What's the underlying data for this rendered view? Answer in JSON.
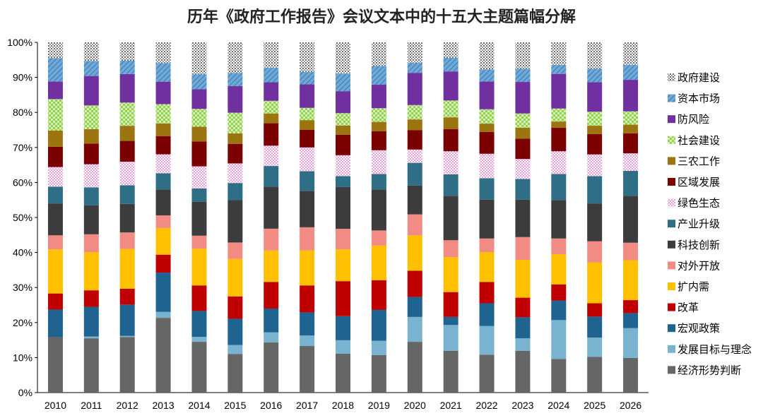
{
  "chart_data": {
    "type": "stacked-bar-100",
    "title": "历年《政府工作报告》会议文本中的十五大主题篇幅分解",
    "xlabel": "",
    "ylabel": "",
    "ylim": [
      0,
      100
    ],
    "yticks": [
      "0%",
      "10%",
      "20%",
      "30%",
      "40%",
      "50%",
      "60%",
      "70%",
      "80%",
      "90%",
      "100%"
    ],
    "categories": [
      "2010",
      "2011",
      "2012",
      "2013",
      "2014",
      "2015",
      "2016",
      "2017",
      "2018",
      "2019",
      "2020",
      "2021",
      "2022",
      "2023",
      "2024",
      "2025",
      "2026"
    ],
    "series": [
      {
        "name": "经济形势判断",
        "color": "#666666",
        "pattern": "solid",
        "values": [
          15.8,
          15.5,
          15.8,
          21.3,
          14.5,
          11.0,
          14.3,
          13.3,
          11.0,
          10.7,
          14.5,
          11.9,
          10.8,
          11.9,
          9.6,
          10.2,
          9.9
        ]
      },
      {
        "name": "发展目标与理念",
        "color": "#7ab3cf",
        "pattern": "solid",
        "values": [
          0.0,
          0.5,
          0.3,
          1.7,
          1.4,
          2.6,
          2.9,
          3.0,
          3.8,
          4.1,
          7.1,
          7.4,
          8.2,
          3.6,
          11.1,
          5.5,
          8.5
        ]
      },
      {
        "name": "宏观政策",
        "color": "#1f6391",
        "pattern": "solid",
        "values": [
          7.9,
          8.5,
          8.9,
          11.2,
          7.4,
          7.5,
          6.8,
          6.6,
          6.8,
          8.8,
          5.7,
          2.3,
          6.5,
          6.0,
          5.6,
          6.0,
          4.3
        ]
      },
      {
        "name": "改革",
        "color": "#c00000",
        "pattern": "solid",
        "values": [
          4.6,
          4.7,
          4.5,
          5.1,
          7.3,
          6.4,
          7.6,
          7.7,
          9.9,
          8.5,
          7.5,
          7.1,
          6.1,
          5.6,
          4.6,
          3.8,
          3.7
        ]
      },
      {
        "name": "扩内需",
        "color": "#ffc000",
        "pattern": "solid",
        "values": [
          12.6,
          10.9,
          11.3,
          7.6,
          10.5,
          10.7,
          9.0,
          10.0,
          9.0,
          9.9,
          10.1,
          10.0,
          8.5,
          10.8,
          8.6,
          11.7,
          11.4
        ]
      },
      {
        "name": "对外开放",
        "color": "#f28b84",
        "pattern": "solid",
        "values": [
          4.0,
          5.1,
          4.7,
          3.6,
          3.7,
          4.7,
          6.2,
          6.6,
          5.8,
          4.3,
          6.0,
          4.8,
          3.9,
          6.5,
          4.5,
          6.0,
          5.0
        ]
      },
      {
        "name": "科技创新",
        "color": "#3c3c3c",
        "pattern": "solid",
        "values": [
          9.1,
          8.3,
          8.1,
          7.4,
          9.7,
          12.1,
          12.0,
          10.4,
          11.8,
          11.7,
          8.2,
          12.7,
          11.1,
          10.7,
          11.0,
          10.8,
          13.4
        ]
      },
      {
        "name": "产业升级",
        "color": "#2f6e87",
        "pattern": "solid",
        "values": [
          4.8,
          5.1,
          5.3,
          4.6,
          3.8,
          4.9,
          5.9,
          5.6,
          3.1,
          4.4,
          6.5,
          6.1,
          6.1,
          5.9,
          7.4,
          7.8,
          7.1
        ]
      },
      {
        "name": "绿色生态",
        "color": "#e9a0dc",
        "pattern": "dots",
        "values": [
          5.6,
          6.6,
          6.7,
          5.4,
          6.3,
          5.6,
          5.8,
          6.8,
          5.9,
          6.8,
          3.8,
          6.6,
          7.0,
          5.7,
          6.5,
          6.2,
          5.0
        ]
      },
      {
        "name": "区域发展",
        "color": "#7b0000",
        "pattern": "solid",
        "values": [
          5.8,
          5.9,
          5.9,
          5.2,
          7.1,
          5.6,
          6.4,
          5.0,
          5.8,
          5.4,
          5.5,
          6.3,
          6.2,
          5.8,
          6.7,
          5.8,
          5.7
        ]
      },
      {
        "name": "三农工作",
        "color": "#9c7410",
        "pattern": "solid",
        "values": [
          4.6,
          4.1,
          4.3,
          3.6,
          4.2,
          3.0,
          2.8,
          2.8,
          2.6,
          2.7,
          3.1,
          3.4,
          2.4,
          3.1,
          1.8,
          2.4,
          2.5
        ]
      },
      {
        "name": "社会建设",
        "color": "#92d050",
        "pattern": "checker",
        "values": [
          9.0,
          6.8,
          6.6,
          5.5,
          5.1,
          5.9,
          3.6,
          3.5,
          3.5,
          3.9,
          4.1,
          4.8,
          4.1,
          4.1,
          3.7,
          4.0,
          3.8
        ]
      },
      {
        "name": "防风险",
        "color": "#7030a0",
        "pattern": "solid",
        "values": [
          5.0,
          8.4,
          8.1,
          6.4,
          5.6,
          7.6,
          5.3,
          6.7,
          6.2,
          6.7,
          9.2,
          8.3,
          7.9,
          9.0,
          9.9,
          8.4,
          9.0
        ]
      },
      {
        "name": "资本市场",
        "color": "#6fa8dc",
        "pattern": "hatch",
        "values": [
          6.7,
          4.3,
          3.8,
          5.3,
          4.3,
          3.8,
          4.2,
          3.6,
          5.0,
          5.4,
          2.9,
          3.9,
          3.5,
          3.8,
          2.6,
          3.9,
          4.3
        ]
      },
      {
        "name": "政府建设",
        "color": "#a6a6a6",
        "pattern": "crosshatch",
        "values": [
          4.5,
          5.3,
          5.2,
          5.9,
          9.1,
          8.7,
          7.2,
          8.4,
          8.8,
          6.7,
          5.8,
          4.4,
          7.7,
          7.5,
          6.4,
          7.5,
          6.4
        ]
      }
    ]
  }
}
